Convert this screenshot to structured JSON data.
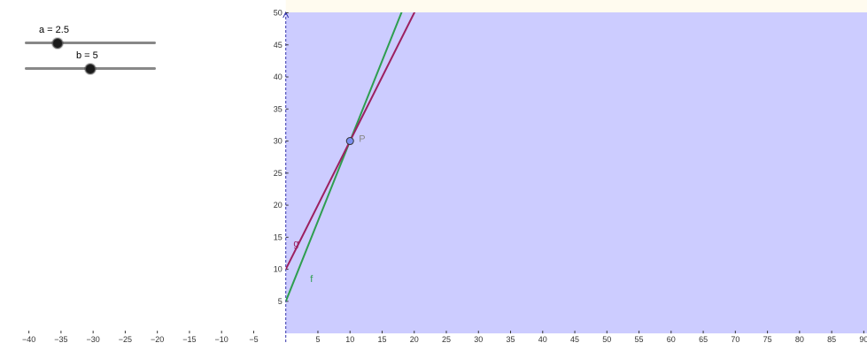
{
  "sliders": [
    {
      "label": "a = 2.5",
      "value": 2.5,
      "min": 0,
      "max": 10
    },
    {
      "label": "b = 5",
      "value": 5,
      "min": 0,
      "max": 10
    }
  ],
  "chart_data": {
    "type": "line",
    "title": "",
    "xlabel": "",
    "ylabel": "",
    "xlim": [
      -44.5,
      90.5
    ],
    "ylim": [
      -1.5,
      52
    ],
    "x_ticks": [
      -40,
      -35,
      -30,
      -25,
      -20,
      -15,
      -10,
      -5,
      5,
      10,
      15,
      20,
      25,
      30,
      35,
      40,
      45,
      50,
      55,
      60,
      65,
      70,
      75,
      80,
      85,
      90
    ],
    "y_ticks": [
      5,
      10,
      15,
      20,
      25,
      30,
      35,
      40,
      45,
      50
    ],
    "x_tick_labels": [
      "−40",
      "−35",
      "−30",
      "−25",
      "−20",
      "−15",
      "−10",
      "−5",
      "5",
      "10",
      "15",
      "20",
      "25",
      "30",
      "35",
      "40",
      "45",
      "50",
      "55",
      "60",
      "65",
      "70",
      "75",
      "80",
      "85",
      "90"
    ],
    "y_tick_labels": [
      "5",
      "10",
      "15",
      "20",
      "25",
      "30",
      "35",
      "40",
      "45",
      "50"
    ],
    "shaded_region": {
      "x_from": 0,
      "y_from": 0,
      "color": "#ccccff"
    },
    "series": [
      {
        "name": "f",
        "function": "y = 2.5x + 5",
        "slope": 2.5,
        "intercept": 5,
        "color": "#2e9e4f",
        "label_point": [
          3.8,
          8
        ]
      },
      {
        "name": "g",
        "function": "y = 2x + 10",
        "slope": 2,
        "intercept": 10,
        "color": "#9c2060",
        "label_point": [
          1.2,
          13.5
        ]
      }
    ],
    "points": [
      {
        "name": "P",
        "x": 10,
        "y": 30,
        "color": "#7b8ff0"
      }
    ],
    "colors": {
      "axis": "#333333",
      "y_axis_dashed": "#3333aa",
      "top_strip": "#fffbef",
      "grid": false
    }
  }
}
